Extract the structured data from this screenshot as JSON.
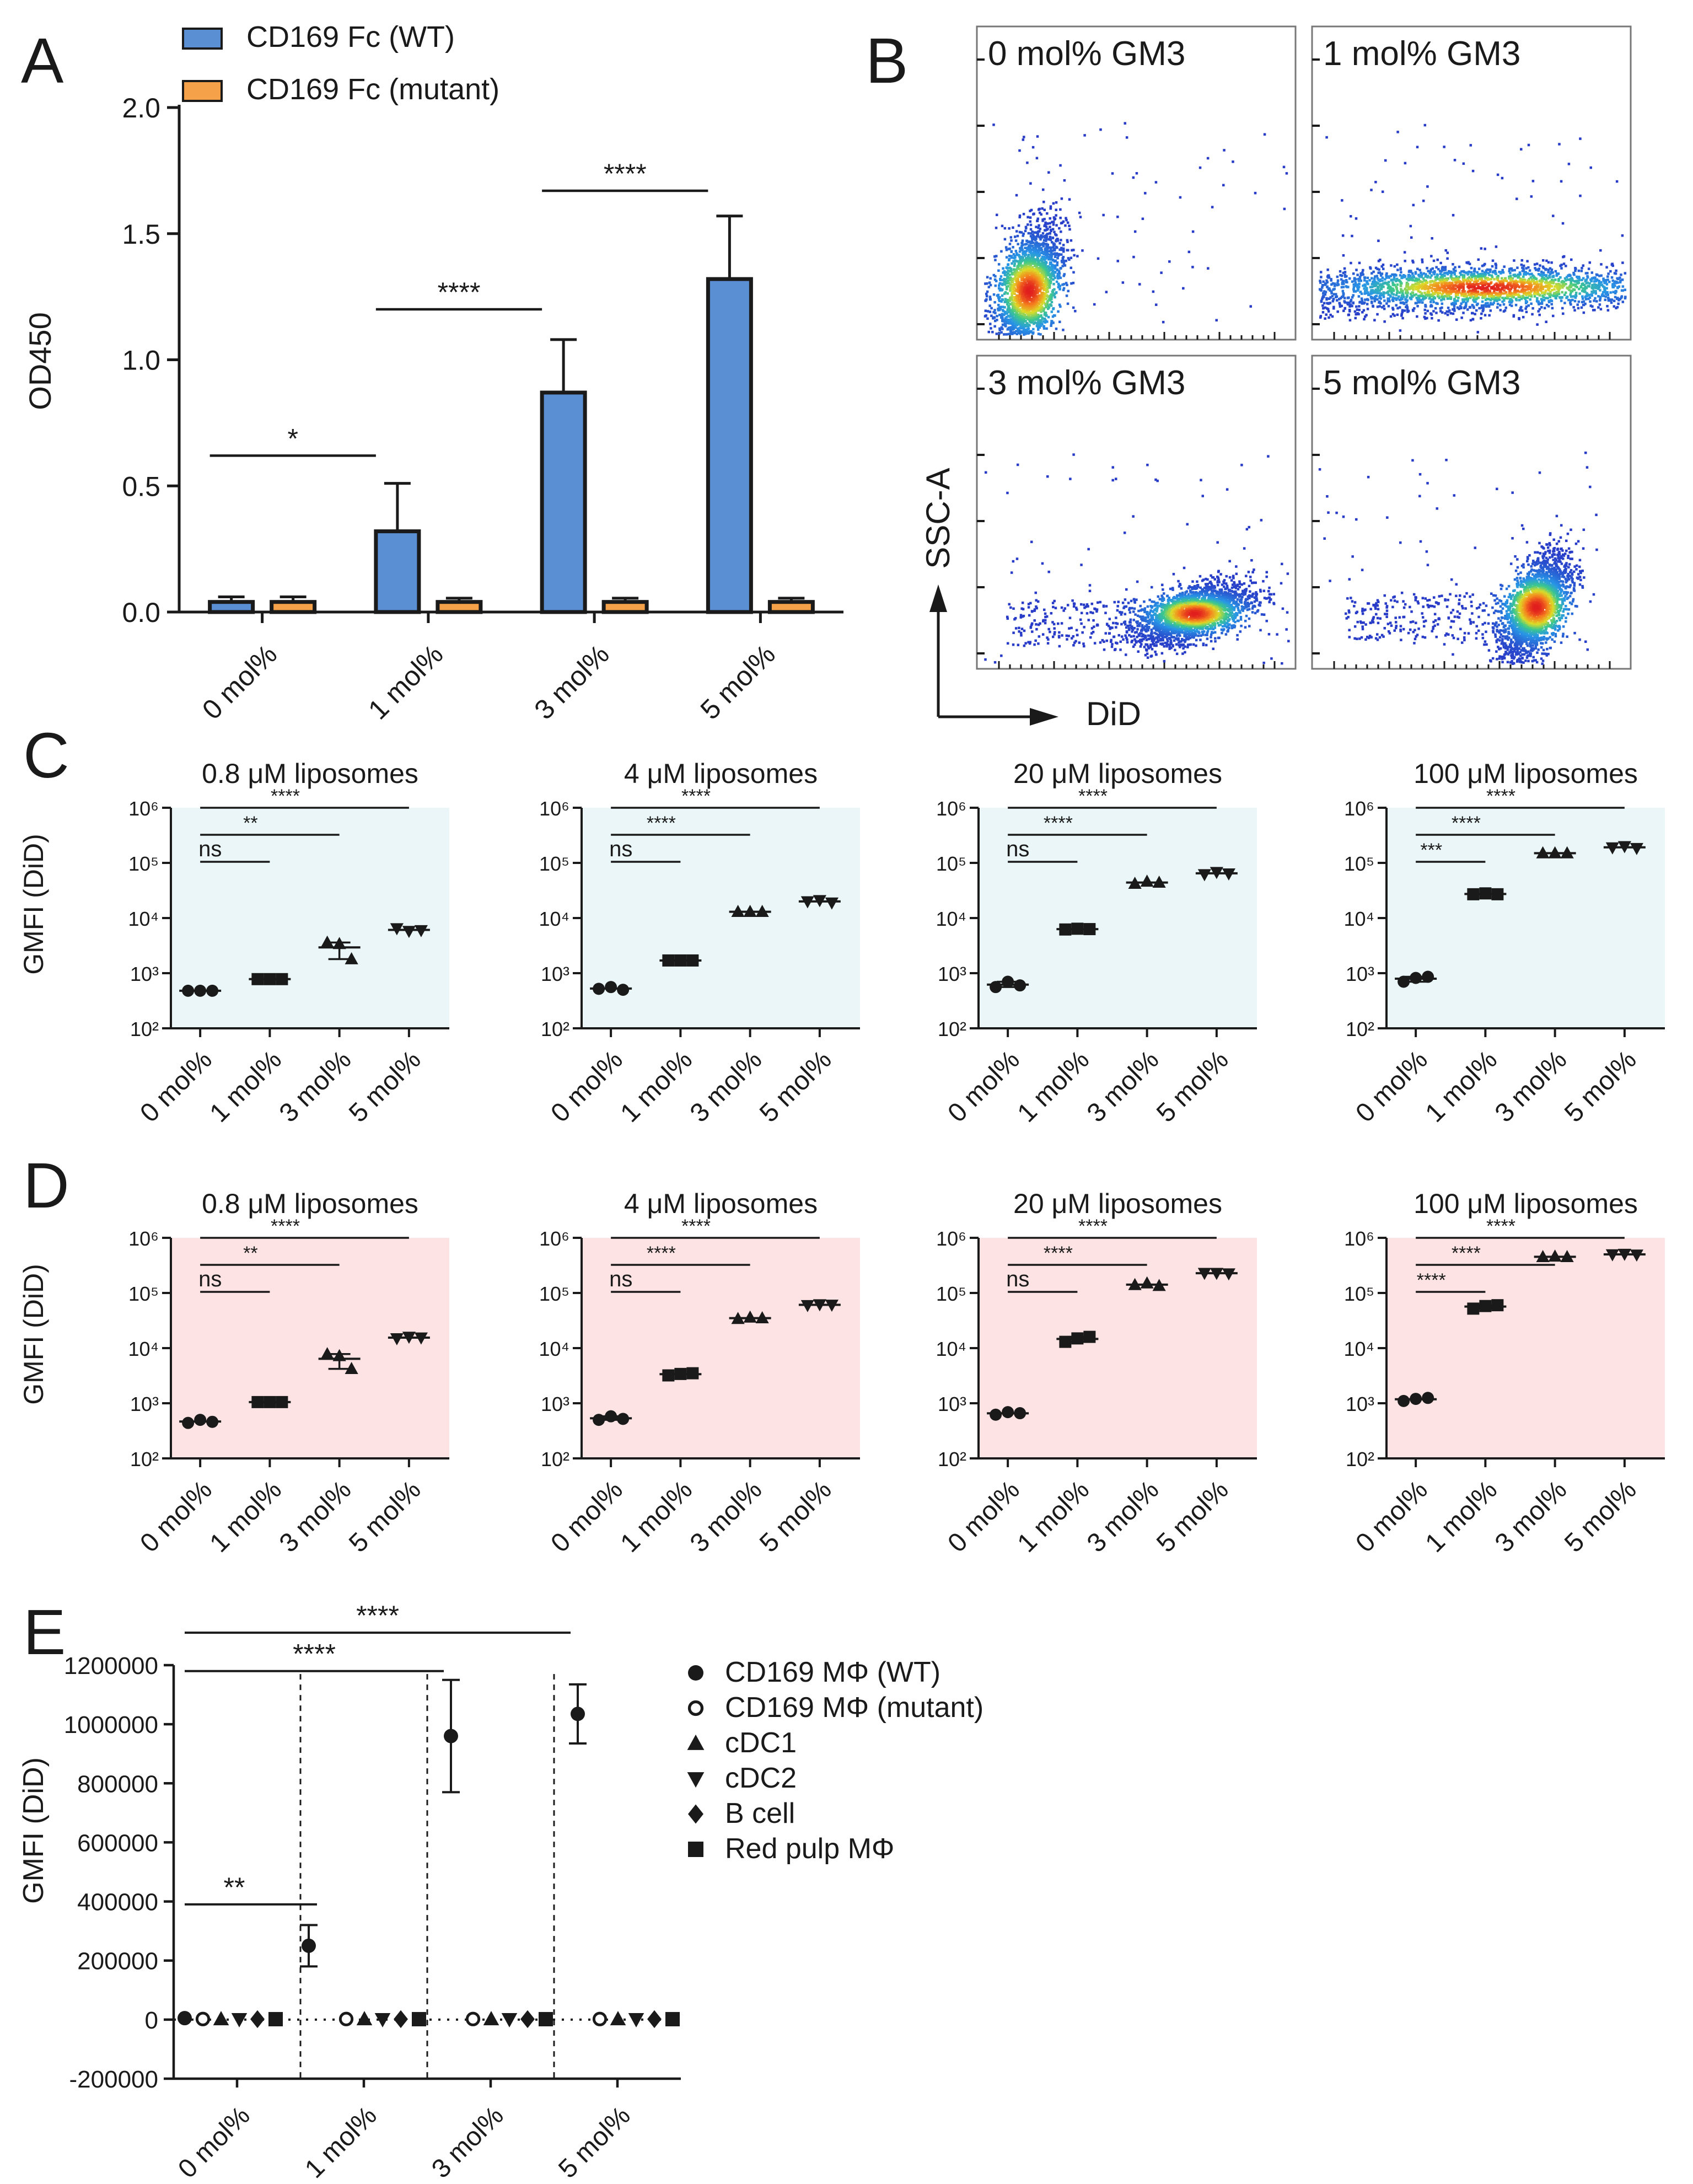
{
  "colors": {
    "wt_bar": "#5b8fd4",
    "mutant_bar": "#f4a14a",
    "panel_c_bg": "#eaf6f7",
    "panel_d_bg": "#fde3e3",
    "ink": "#1a1a1a"
  },
  "chart_data": [
    {
      "id": "A",
      "type": "bar",
      "panel_label": "A",
      "ylabel": "OD450",
      "ylim": [
        0,
        2.0
      ],
      "yticks": [
        "0.0",
        "0.5",
        "1.0",
        "1.5",
        "2.0"
      ],
      "categories": [
        "0 mol%",
        "1 mol%",
        "3 mol%",
        "5 mol%"
      ],
      "series": [
        {
          "name": "CD169 Fc (WT)",
          "values": [
            0.04,
            0.32,
            0.87,
            1.32
          ],
          "errors": [
            0.02,
            0.19,
            0.21,
            0.25
          ]
        },
        {
          "name": "CD169 Fc (mutant)",
          "values": [
            0.04,
            0.04,
            0.04,
            0.04
          ],
          "errors": [
            0.02,
            0.015,
            0.015,
            0.015
          ]
        }
      ],
      "significance": [
        {
          "from": 0,
          "to": 1,
          "label": "*",
          "y": 0.62
        },
        {
          "from": 1,
          "to": 2,
          "label": "****",
          "y": 1.2
        },
        {
          "from": 2,
          "to": 3,
          "label": "****",
          "y": 1.67
        }
      ]
    },
    {
      "id": "B",
      "type": "scatter",
      "panel_label": "B",
      "xlabel": "DiD",
      "ylabel": "SSC-A",
      "plots": [
        {
          "title": "0 mol% GM3",
          "center": [
            0.16,
            0.16
          ],
          "spread": [
            0.07,
            0.16
          ],
          "tilt": 0.9
        },
        {
          "title": "1 mol% GM3",
          "center": [
            0.54,
            0.17
          ],
          "spread": [
            0.3,
            0.06
          ],
          "tilt": 0.0
        },
        {
          "title": "3 mol% GM3",
          "center": [
            0.68,
            0.18
          ],
          "spread": [
            0.1,
            0.07
          ],
          "tilt": 0.3
        },
        {
          "title": "5 mol% GM3",
          "center": [
            0.7,
            0.2
          ],
          "spread": [
            0.07,
            0.12
          ],
          "tilt": 0.8
        }
      ]
    },
    {
      "id": "C",
      "type": "scatter",
      "panel_label": "C",
      "ylabel": "GMFI (DiD)",
      "yscale": "log",
      "ylim": [
        100,
        1000000
      ],
      "yticks": [
        "10²",
        "10³",
        "10⁴",
        "10⁵",
        "10⁶"
      ],
      "categories": [
        "0 mol%",
        "1 mol%",
        "3 mol%",
        "5 mol%"
      ],
      "markers": [
        "circle",
        "square",
        "triangle-up",
        "triangle-down"
      ],
      "plots": [
        {
          "title": "0.8 μM liposomes",
          "values": [
            [
              480,
              480,
              480
            ],
            [
              780,
              780,
              780
            ],
            [
              3600,
              3400,
              1800
            ],
            [
              6500,
              5800,
              6000
            ]
          ],
          "sig": [
            {
              "to": 1,
              "label": "ns"
            },
            {
              "to": 2,
              "label": "**"
            },
            {
              "to": 3,
              "label": "****"
            }
          ]
        },
        {
          "title": "4 μM liposomes",
          "values": [
            [
              520,
              560,
              500
            ],
            [
              1700,
              1700,
              1700
            ],
            [
              13000,
              13000,
              13000
            ],
            [
              20000,
              21000,
              19000
            ]
          ],
          "sig": [
            {
              "to": 1,
              "label": "ns"
            },
            {
              "to": 2,
              "label": "****"
            },
            {
              "to": 3,
              "label": "****"
            }
          ]
        },
        {
          "title": "20 μM liposomes",
          "values": [
            [
              560,
              700,
              600
            ],
            [
              6200,
              6400,
              6300
            ],
            [
              42000,
              46000,
              44000
            ],
            [
              62000,
              68000,
              64000
            ]
          ],
          "sig": [
            {
              "to": 1,
              "label": "ns"
            },
            {
              "to": 2,
              "label": "****"
            },
            {
              "to": 3,
              "label": "****"
            }
          ]
        },
        {
          "title": "100 μM liposomes",
          "values": [
            [
              700,
              820,
              860
            ],
            [
              27000,
              28000,
              27000
            ],
            [
              150000,
              150000,
              150000
            ],
            [
              190000,
              200000,
              185000
            ]
          ],
          "sig": [
            {
              "to": 1,
              "label": "***"
            },
            {
              "to": 2,
              "label": "****"
            },
            {
              "to": 3,
              "label": "****"
            }
          ]
        }
      ]
    },
    {
      "id": "D",
      "type": "scatter",
      "panel_label": "D",
      "ylabel": "GMFI (DiD)",
      "yscale": "log",
      "ylim": [
        100,
        1000000
      ],
      "yticks": [
        "10²",
        "10³",
        "10⁴",
        "10⁵",
        "10⁶"
      ],
      "categories": [
        "0 mol%",
        "1 mol%",
        "3 mol%",
        "5 mol%"
      ],
      "markers": [
        "circle",
        "square",
        "triangle-up",
        "triangle-down"
      ],
      "plots": [
        {
          "title": "0.8 μM liposomes",
          "values": [
            [
              440,
              500,
              460
            ],
            [
              1050,
              1050,
              1050
            ],
            [
              7800,
              7200,
              4200
            ],
            [
              15000,
              16000,
              15500
            ]
          ],
          "sig": [
            {
              "to": 1,
              "label": "ns"
            },
            {
              "to": 2,
              "label": "**"
            },
            {
              "to": 3,
              "label": "****"
            }
          ]
        },
        {
          "title": "4 μM liposomes",
          "values": [
            [
              500,
              580,
              520
            ],
            [
              3200,
              3400,
              3500
            ],
            [
              34000,
              36000,
              35000
            ],
            [
              60000,
              62000,
              61000
            ]
          ],
          "sig": [
            {
              "to": 1,
              "label": "ns"
            },
            {
              "to": 2,
              "label": "****"
            },
            {
              "to": 3,
              "label": "****"
            }
          ]
        },
        {
          "title": "20 μM liposomes",
          "values": [
            [
              620,
              690,
              660
            ],
            [
              13000,
              15000,
              16000
            ],
            [
              140000,
              150000,
              135000
            ],
            [
              230000,
              230000,
              225000
            ]
          ],
          "sig": [
            {
              "to": 1,
              "label": "ns"
            },
            {
              "to": 2,
              "label": "****"
            },
            {
              "to": 3,
              "label": "****"
            }
          ]
        },
        {
          "title": "100 μM liposomes",
          "values": [
            [
              1100,
              1200,
              1250
            ],
            [
              52000,
              58000,
              60000
            ],
            [
              450000,
              460000,
              450000
            ],
            [
              500000,
              510000,
              495000
            ]
          ],
          "sig": [
            {
              "to": 1,
              "label": "****"
            },
            {
              "to": 2,
              "label": "****"
            },
            {
              "to": 3,
              "label": "****"
            }
          ]
        }
      ]
    },
    {
      "id": "E",
      "type": "scatter",
      "panel_label": "E",
      "ylabel": "GMFI (DiD)",
      "ylim": [
        -200000,
        1200000
      ],
      "yticks": [
        "-200000",
        "0",
        "200000",
        "400000",
        "600000",
        "800000",
        "1000000",
        "1200000"
      ],
      "categories": [
        "0 mol%",
        "1 mol%",
        "3 mol%",
        "5 mol%"
      ],
      "series": [
        {
          "name": "CD169 MΦ (WT)",
          "marker": "circle",
          "values": [
            5000,
            250000,
            960000,
            1035000
          ],
          "errors": [
            0,
            70000,
            190000,
            100000
          ]
        },
        {
          "name": "CD169 MΦ (mutant)",
          "marker": "circle-open",
          "values": [
            2000,
            2000,
            2000,
            2000
          ],
          "errors": [
            0,
            0,
            0,
            0
          ]
        },
        {
          "name": "cDC1",
          "marker": "triangle-up",
          "values": [
            1500,
            1500,
            1500,
            1500
          ],
          "errors": [
            0,
            0,
            0,
            0
          ]
        },
        {
          "name": "cDC2",
          "marker": "triangle-down",
          "values": [
            1500,
            1500,
            1500,
            1500
          ],
          "errors": [
            0,
            0,
            0,
            0
          ]
        },
        {
          "name": "B cell",
          "marker": "diamond",
          "values": [
            1500,
            1500,
            1500,
            1500
          ],
          "errors": [
            0,
            0,
            0,
            0
          ]
        },
        {
          "name": "Red pulp MΦ",
          "marker": "square",
          "values": [
            1500,
            1500,
            1500,
            1500
          ],
          "errors": [
            0,
            0,
            0,
            0
          ]
        }
      ],
      "significance": [
        {
          "from": 0,
          "to": 1,
          "label": "**",
          "y": 390000
        },
        {
          "from": 0,
          "to": 2,
          "label": "****",
          "y": 1180000
        },
        {
          "from": 0,
          "to": 3,
          "label": "****",
          "y": 1310000
        }
      ]
    }
  ]
}
